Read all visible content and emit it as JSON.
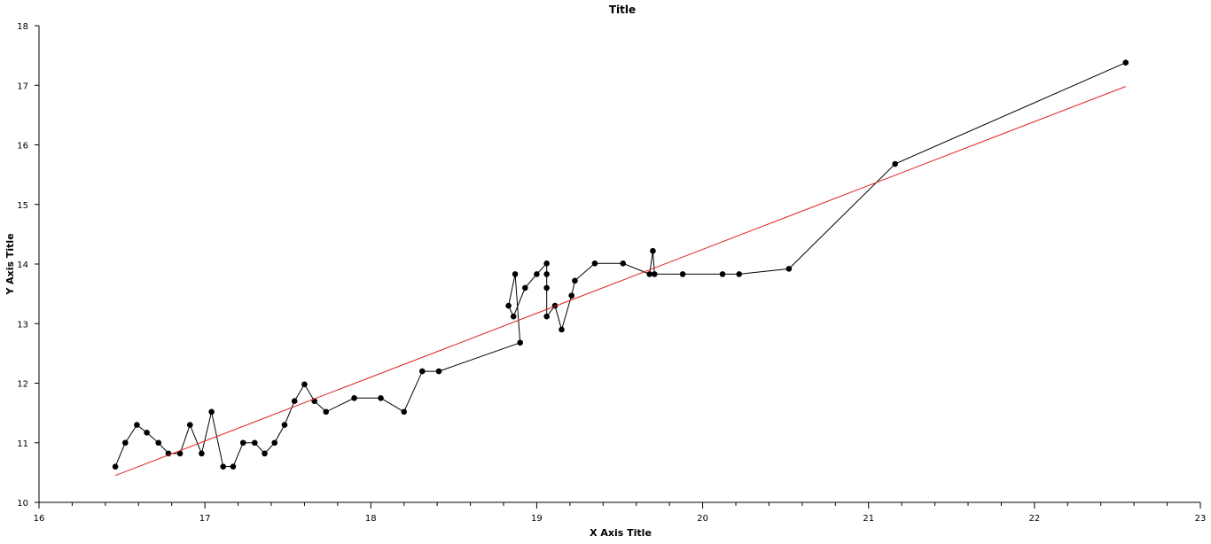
{
  "chart_data": {
    "type": "scatter",
    "title": "Title",
    "xlabel": "X Axis Title",
    "ylabel": "Y Axis Title",
    "xlim": [
      16,
      23
    ],
    "ylim": [
      10,
      18
    ],
    "x_ticks": [
      "16",
      "17",
      "18",
      "19",
      "20",
      "21",
      "22",
      "23"
    ],
    "y_ticks": [
      "10",
      "11",
      "12",
      "13",
      "14",
      "15",
      "16",
      "17",
      "18"
    ],
    "grid": false,
    "legend": "none",
    "series": [
      {
        "style": "line-markers",
        "color": "#000000",
        "x": [
          16.46,
          16.52,
          16.59,
          16.65,
          16.72,
          16.78,
          16.85,
          16.91,
          16.98,
          17.04,
          17.11,
          17.17,
          17.23,
          17.3,
          17.36,
          17.42,
          17.48,
          17.54,
          17.6,
          17.66,
          17.73,
          17.9,
          18.06,
          18.2,
          18.31,
          18.41,
          18.9,
          18.87,
          18.83,
          18.86,
          18.93,
          19.0,
          19.06,
          19.06,
          19.06,
          19.06,
          19.11,
          19.15,
          19.21,
          19.23,
          19.35,
          19.52,
          19.68,
          19.7,
          19.71,
          19.88,
          20.12,
          20.22,
          20.52,
          21.16,
          22.55
        ],
        "y": [
          10.6,
          11.0,
          11.3,
          11.17,
          11.0,
          10.82,
          10.82,
          11.3,
          10.82,
          11.52,
          10.6,
          10.6,
          11.0,
          11.0,
          10.82,
          11.0,
          11.3,
          11.7,
          11.98,
          11.7,
          11.52,
          11.75,
          11.75,
          11.52,
          12.2,
          12.2,
          12.68,
          13.83,
          13.3,
          13.12,
          13.6,
          13.83,
          14.01,
          13.83,
          13.6,
          13.12,
          13.3,
          12.9,
          13.47,
          13.72,
          14.01,
          14.01,
          13.83,
          14.22,
          13.83,
          13.83,
          13.83,
          13.83,
          13.92,
          15.68,
          17.38
        ]
      },
      {
        "style": "line",
        "color": "#e02020",
        "x": [
          16.46,
          22.55
        ],
        "y": [
          10.45,
          16.98
        ]
      }
    ]
  }
}
